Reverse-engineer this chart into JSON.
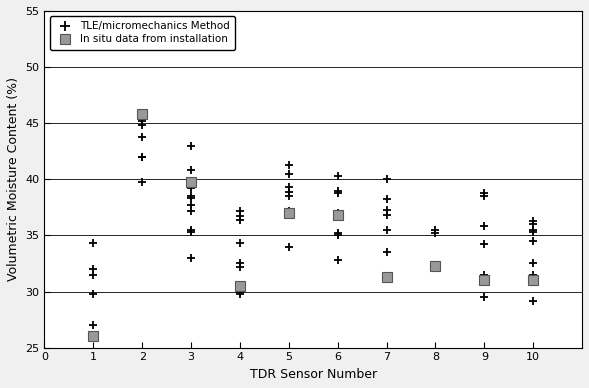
{
  "title": "",
  "xlabel": "TDR Sensor Number",
  "ylabel": "Volumetric Moisture Content (%)",
  "xlim": [
    0,
    11
  ],
  "ylim": [
    25,
    55
  ],
  "yticks": [
    25,
    30,
    35,
    40,
    45,
    50,
    55
  ],
  "xticks": [
    0,
    1,
    2,
    3,
    4,
    5,
    6,
    7,
    8,
    9,
    10
  ],
  "tle_data": {
    "1": [
      27.0,
      29.8,
      31.5,
      32.0,
      34.3
    ],
    "2": [
      39.8,
      42.0,
      42.0,
      43.8,
      44.8,
      45.2
    ],
    "3": [
      33.0,
      35.3,
      35.5,
      37.2,
      37.7,
      38.3,
      38.5,
      39.2,
      39.5,
      40.8,
      43.0
    ],
    "4": [
      29.8,
      30.0,
      32.2,
      32.5,
      34.3,
      36.4,
      36.7,
      37.2
    ],
    "5": [
      34.0,
      36.8,
      37.2,
      38.5,
      38.9,
      39.3,
      40.5,
      41.3
    ],
    "6": [
      32.8,
      35.0,
      35.2,
      37.0,
      38.8,
      39.0,
      40.3
    ],
    "7": [
      31.2,
      33.5,
      35.5,
      36.8,
      37.3,
      38.2,
      40.0
    ],
    "8": [
      35.2,
      35.5
    ],
    "9": [
      29.5,
      31.0,
      31.5,
      34.2,
      35.8,
      38.5,
      38.8
    ],
    "10": [
      29.2,
      31.0,
      31.5,
      32.5,
      34.5,
      35.3,
      35.5,
      36.0,
      36.3
    ]
  },
  "insitu_data": {
    "1": [
      26.0
    ],
    "2": [
      45.8
    ],
    "3": [
      39.8
    ],
    "4": [
      30.5
    ],
    "5": [
      37.0
    ],
    "6": [
      36.8
    ],
    "7": [
      31.3
    ],
    "8": [
      32.3
    ],
    "9": [
      31.0
    ],
    "10": [
      31.0
    ]
  },
  "tle_color": "black",
  "insitu_color": "#999999",
  "insitu_edge_color": "#555555",
  "legend_labels": [
    "TLE/micromechanics Method",
    "In situ data from installation"
  ],
  "legend_loc": "upper left",
  "bg_color": "#f0f0f0",
  "plot_bg_color": "#ffffff"
}
